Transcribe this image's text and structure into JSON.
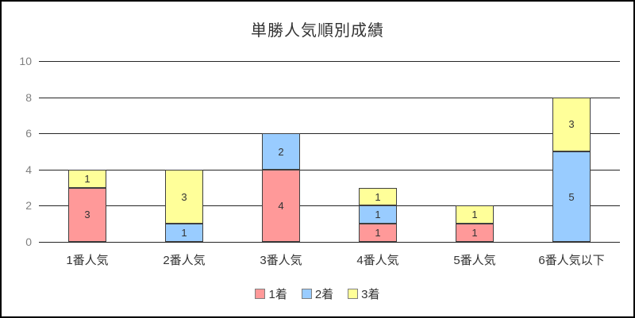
{
  "page": {
    "background_color": "#ffffff",
    "border_color": "#000000"
  },
  "chart_data": {
    "type": "bar",
    "stacked": true,
    "title": "単勝人気順別成績",
    "categories": [
      "1番人気",
      "2番人気",
      "3番人気",
      "4番人気",
      "5番人気",
      "6番人気以下"
    ],
    "series": [
      {
        "name": "1着",
        "color": "#FF9999",
        "values": [
          3,
          0,
          4,
          1,
          1,
          0
        ]
      },
      {
        "name": "2着",
        "color": "#99CCFF",
        "values": [
          0,
          1,
          2,
          1,
          0,
          5
        ]
      },
      {
        "name": "3着",
        "color": "#FFFF99",
        "values": [
          1,
          3,
          0,
          1,
          1,
          3
        ]
      }
    ],
    "ylim": [
      0,
      10
    ],
    "yticks": [
      0,
      2,
      4,
      6,
      8,
      10
    ],
    "grid": "horizontal",
    "legend_position": "bottom",
    "show_segment_labels": true,
    "gridline_color": "#262626",
    "segment_border_color": "#3f3f3f",
    "ytick_label_color": "#808080",
    "xtick_label_color": "#333333"
  }
}
